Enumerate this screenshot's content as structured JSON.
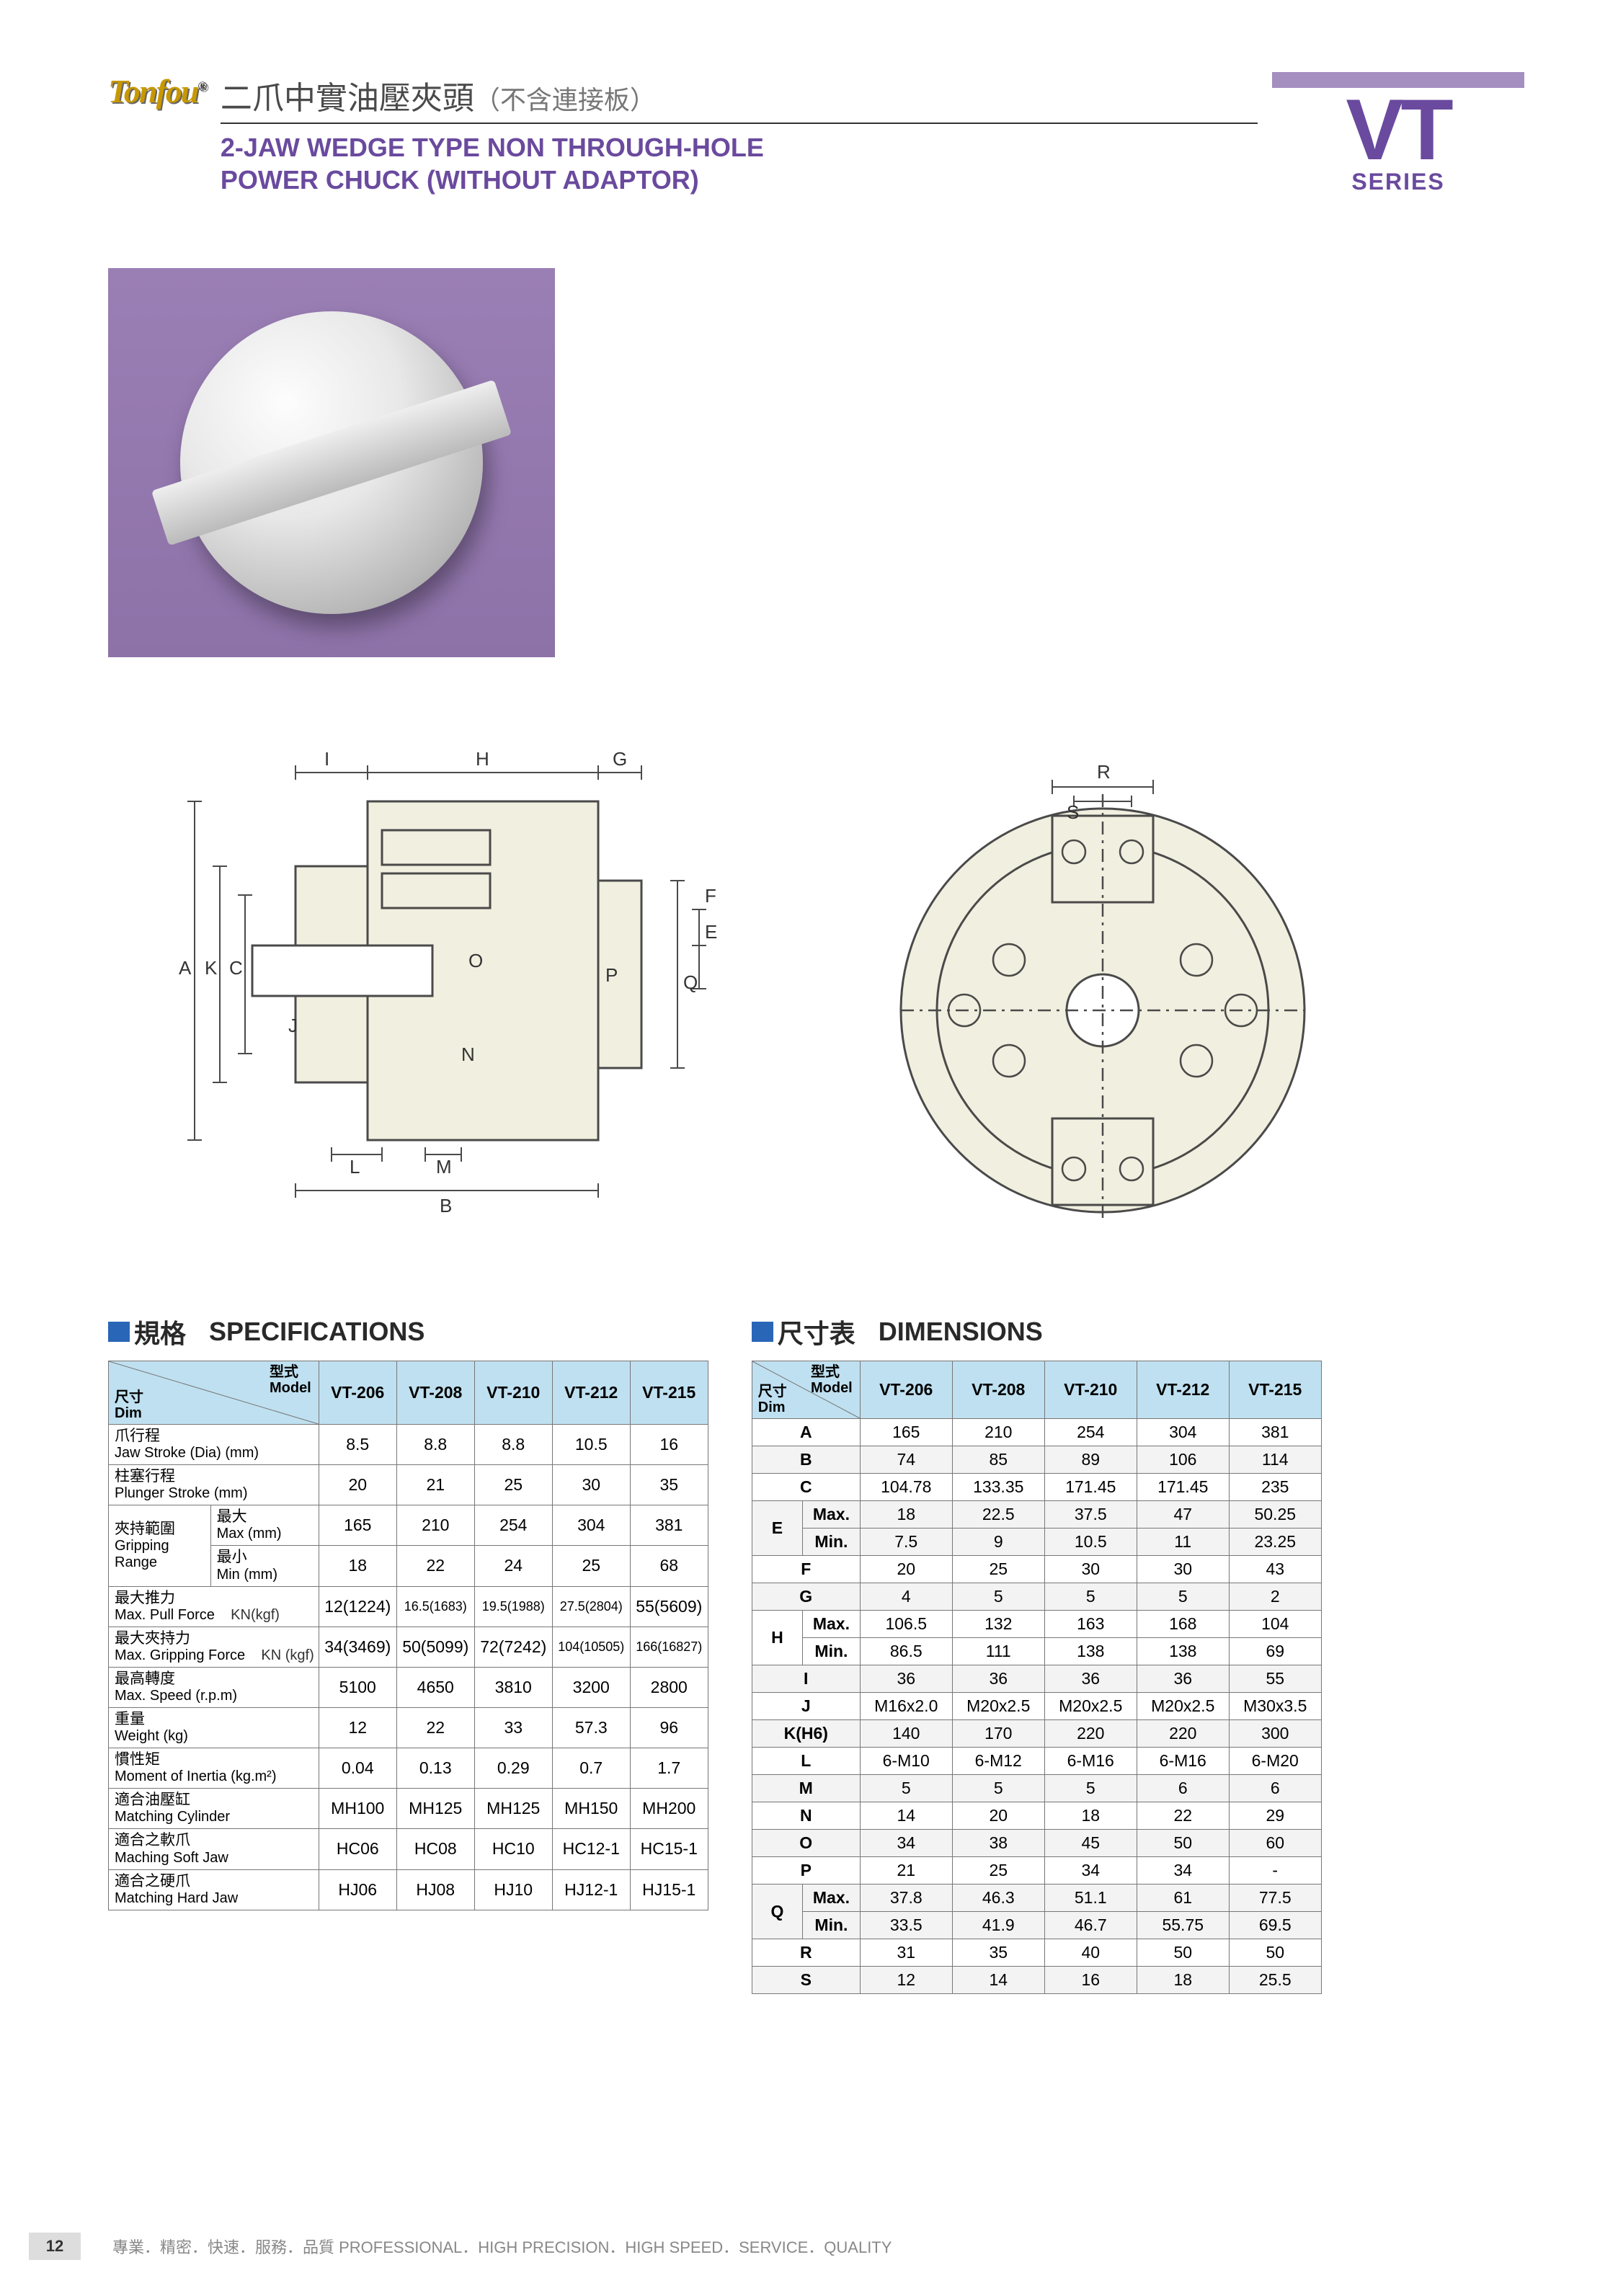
{
  "logo_text": "Tonfou",
  "title_cn": "二爪中實油壓夾頭",
  "title_cn_note": "（不含連接板）",
  "title_en_l1": "2-JAW WEDGE TYPE NON THROUGH-HOLE",
  "title_en_l2": "POWER CHUCK (WITHOUT ADAPTOR)",
  "series_code": "VT",
  "series_label": "SERIES",
  "spec_heading_cn": "規格",
  "spec_heading_en": "SPECIFICATIONS",
  "dim_heading_cn": "尺寸表",
  "dim_heading_en": "DIMENSIONS",
  "model_label_cn": "型式",
  "model_label_en": "Model",
  "dim_label_cn": "尺寸",
  "dim_label_en": "Dim",
  "models": [
    "VT-206",
    "VT-208",
    "VT-210",
    "VT-212",
    "VT-215"
  ],
  "spec_rows": [
    {
      "cn": "爪行程",
      "en": "Jaw Stroke (Dia) (mm)",
      "vals": [
        "8.5",
        "8.8",
        "8.8",
        "10.5",
        "16"
      ]
    },
    {
      "cn": "柱塞行程",
      "en": "Plunger Stroke (mm)",
      "vals": [
        "20",
        "21",
        "25",
        "30",
        "35"
      ]
    },
    {
      "group_cn": "夾持範圍",
      "group_en": "Gripping\nRange",
      "sub_cn": "最大",
      "sub_en": "Max (mm)",
      "vals": [
        "165",
        "210",
        "254",
        "304",
        "381"
      ]
    },
    {
      "sub_cn": "最小",
      "sub_en": "Min (mm)",
      "vals": [
        "18",
        "22",
        "24",
        "25",
        "68"
      ]
    },
    {
      "cn": "最大推力",
      "en": "Max. Pull Force",
      "unit": "KN(kgf)",
      "vals": [
        "12(1224)",
        "16.5(1683)",
        "19.5(1988)",
        "27.5(2804)",
        "55(5609)"
      ]
    },
    {
      "cn": "最大夾持力",
      "en": "Max. Gripping Force",
      "unit": "KN (kgf)",
      "vals": [
        "34(3469)",
        "50(5099)",
        "72(7242)",
        "104(10505)",
        "166(16827)"
      ]
    },
    {
      "cn": "最高轉度",
      "en": "Max. Speed (r.p.m)",
      "vals": [
        "5100",
        "4650",
        "3810",
        "3200",
        "2800"
      ]
    },
    {
      "cn": "重量",
      "en": "Weight (kg)",
      "vals": [
        "12",
        "22",
        "33",
        "57.3",
        "96"
      ]
    },
    {
      "cn": "慣性矩",
      "en": "Moment of Inertia (kg.m²)",
      "vals": [
        "0.04",
        "0.13",
        "0.29",
        "0.7",
        "1.7"
      ]
    },
    {
      "cn": "適合油壓缸",
      "en": "Matching Cylinder",
      "vals": [
        "MH100",
        "MH125",
        "MH125",
        "MH150",
        "MH200"
      ]
    },
    {
      "cn": "適合之軟爪",
      "en": "Maching Soft Jaw",
      "vals": [
        "HC06",
        "HC08",
        "HC10",
        "HC12-1",
        "HC15-1"
      ]
    },
    {
      "cn": "適合之硬爪",
      "en": "Matching Hard Jaw",
      "vals": [
        "HJ06",
        "HJ08",
        "HJ10",
        "HJ12-1",
        "HJ15-1"
      ]
    }
  ],
  "dim_rows": [
    {
      "k": "A",
      "v": [
        "165",
        "210",
        "254",
        "304",
        "381"
      ]
    },
    {
      "k": "B",
      "v": [
        "74",
        "85",
        "89",
        "106",
        "114"
      ],
      "alt": true
    },
    {
      "k": "C",
      "v": [
        "104.78",
        "133.35",
        "171.45",
        "171.45",
        "235"
      ]
    },
    {
      "k": "E",
      "sub": "Max.",
      "v": [
        "18",
        "22.5",
        "37.5",
        "47",
        "50.25"
      ],
      "alt": true
    },
    {
      "sub": "Min.",
      "v": [
        "7.5",
        "9",
        "10.5",
        "11",
        "23.25"
      ],
      "alt": true
    },
    {
      "k": "F",
      "v": [
        "20",
        "25",
        "30",
        "30",
        "43"
      ]
    },
    {
      "k": "G",
      "v": [
        "4",
        "5",
        "5",
        "5",
        "2"
      ],
      "alt": true
    },
    {
      "k": "H",
      "sub": "Max.",
      "v": [
        "106.5",
        "132",
        "163",
        "168",
        "104"
      ]
    },
    {
      "sub": "Min.",
      "v": [
        "86.5",
        "111",
        "138",
        "138",
        "69"
      ]
    },
    {
      "k": "I",
      "v": [
        "36",
        "36",
        "36",
        "36",
        "55"
      ],
      "alt": true
    },
    {
      "k": "J",
      "v": [
        "M16x2.0",
        "M20x2.5",
        "M20x2.5",
        "M20x2.5",
        "M30x3.5"
      ]
    },
    {
      "k": "K(H6)",
      "v": [
        "140",
        "170",
        "220",
        "220",
        "300"
      ],
      "alt": true
    },
    {
      "k": "L",
      "v": [
        "6-M10",
        "6-M12",
        "6-M16",
        "6-M16",
        "6-M20"
      ]
    },
    {
      "k": "M",
      "v": [
        "5",
        "5",
        "5",
        "6",
        "6"
      ],
      "alt": true
    },
    {
      "k": "N",
      "v": [
        "14",
        "20",
        "18",
        "22",
        "29"
      ]
    },
    {
      "k": "O",
      "v": [
        "34",
        "38",
        "45",
        "50",
        "60"
      ],
      "alt": true
    },
    {
      "k": "P",
      "v": [
        "21",
        "25",
        "34",
        "34",
        "-"
      ]
    },
    {
      "k": "Q",
      "sub": "Max.",
      "v": [
        "37.8",
        "46.3",
        "51.1",
        "61",
        "77.5"
      ],
      "alt": true
    },
    {
      "sub": "Min.",
      "v": [
        "33.5",
        "41.9",
        "46.7",
        "55.75",
        "69.5"
      ],
      "alt": true
    },
    {
      "k": "R",
      "v": [
        "31",
        "35",
        "40",
        "50",
        "50"
      ]
    },
    {
      "k": "S",
      "v": [
        "12",
        "14",
        "16",
        "18",
        "25.5"
      ],
      "alt": true
    }
  ],
  "diagram_labels_side": [
    "I",
    "H",
    "G",
    "F",
    "E",
    "Q",
    "A",
    "K",
    "C",
    "O",
    "P",
    "J",
    "N",
    "L",
    "M",
    "B"
  ],
  "diagram_labels_front": [
    "R",
    "S"
  ],
  "page_number": "12",
  "footer_text": "專業．精密．快速．服務．品質  PROFESSIONAL．HIGH PRECISION．HIGH SPEED．SERVICE．QUALITY",
  "colors": {
    "purple_text": "#6a4a9e",
    "purple_bar": "#a58fc0",
    "title_border": "#333333",
    "section_sq": "#2a66b8",
    "table_header_bg": "#bfe0f0",
    "table_border": "#777777",
    "alt_row_bg": "#f3f3f3",
    "photo_bg": "#8d72a8",
    "diagram_fill": "#f1efdf",
    "diagram_stroke": "#4a4a4a",
    "footer_text": "#888888",
    "logo_color": "#c89800"
  }
}
